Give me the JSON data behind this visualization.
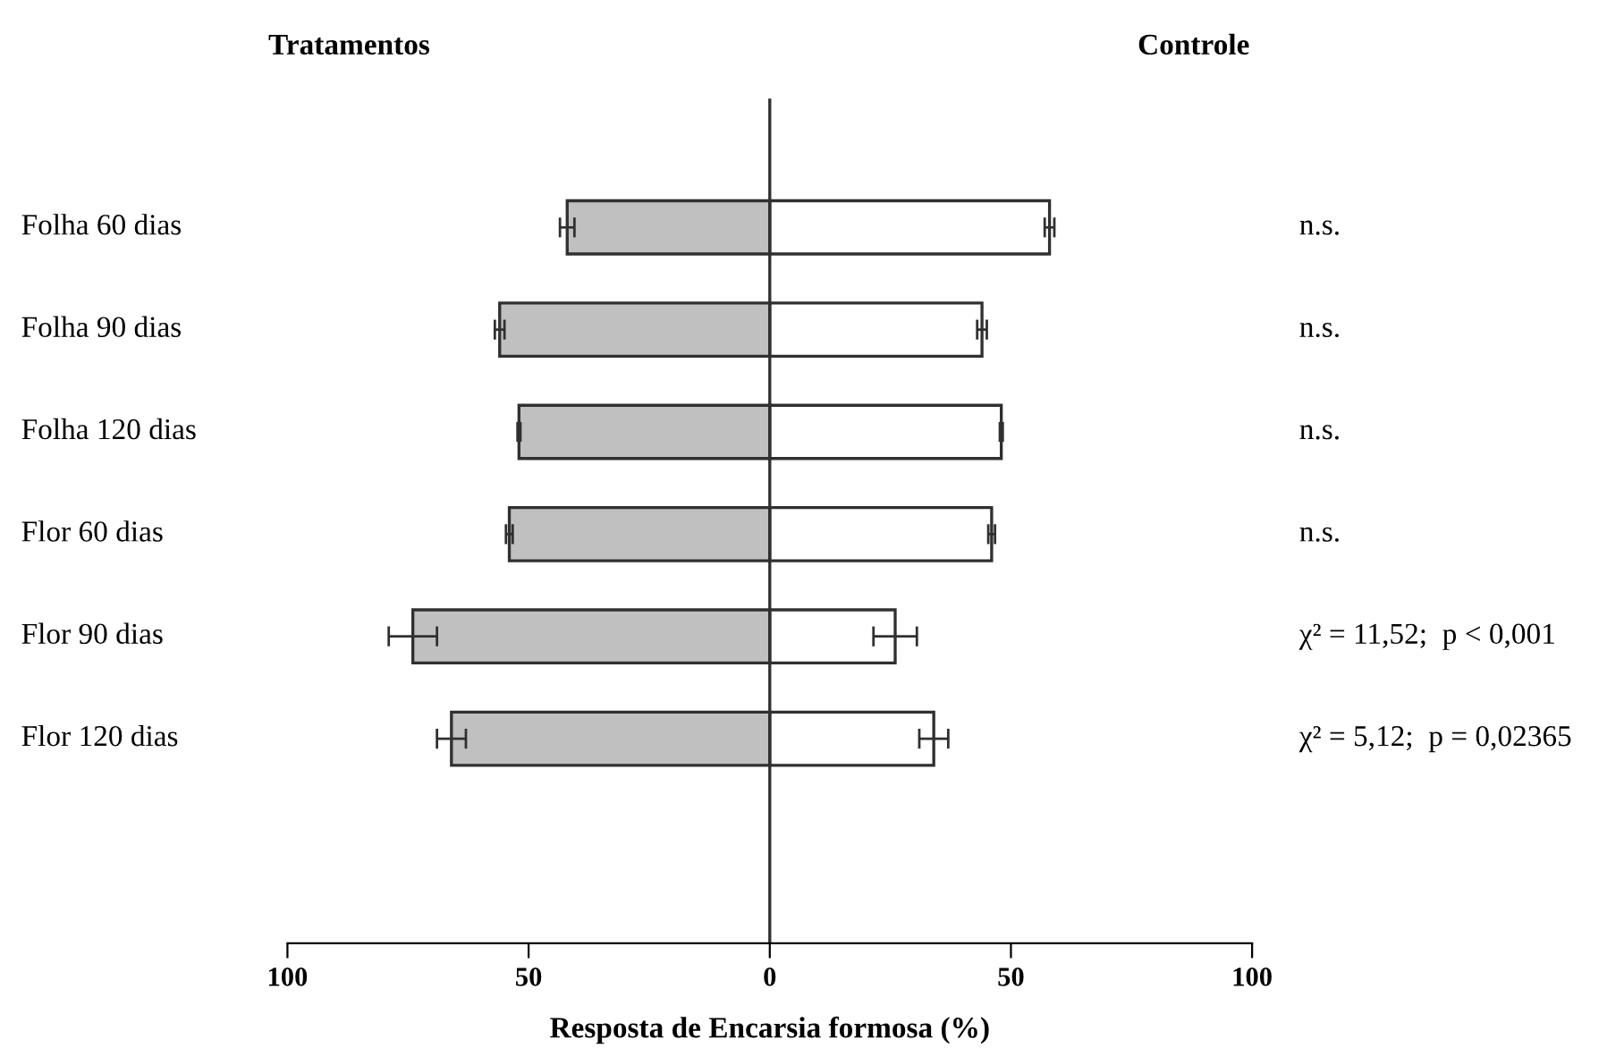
{
  "chart_data": {
    "type": "bar",
    "orientation": "horizontal",
    "stacked": true,
    "xlabel": "Resposta de Encarsia formosa (%)",
    "categories": [
      "Folha 60 dias",
      "Folha 90 dias",
      "Folha 120 dias",
      "Flor 60 dias",
      "Flor 90 dias",
      "Flor 120 dias"
    ],
    "series": [
      {
        "color": "#c0c0c0",
        "values": [
          -42,
          -56,
          -52,
          -54,
          -74,
          -66
        ],
        "errors": [
          1.5,
          1,
          0.3,
          0.7,
          5,
          3
        ]
      },
      {
        "color": "#ffffff",
        "values": [
          58,
          44,
          48,
          46,
          26,
          34
        ],
        "errors": [
          1,
          1,
          0.3,
          0.7,
          4.5,
          3
        ]
      }
    ],
    "xlim": [
      -100,
      100
    ],
    "xticks": [
      {
        "value": -100,
        "label": "100"
      },
      {
        "value": -50,
        "label": "50"
      },
      0,
      50,
      100
    ],
    "ref_lines": [
      {
        "axis": "x",
        "value": 0,
        "color": "#303030"
      }
    ],
    "annotations": [
      "Tratamentos",
      "Controle",
      "n.s.",
      "n.s.",
      "n.s.",
      "n.s.",
      "χ² = 11,52;  p < 0,001",
      "χ² = 5,12;  p = 0,02365"
    ],
    "legend": false
  }
}
